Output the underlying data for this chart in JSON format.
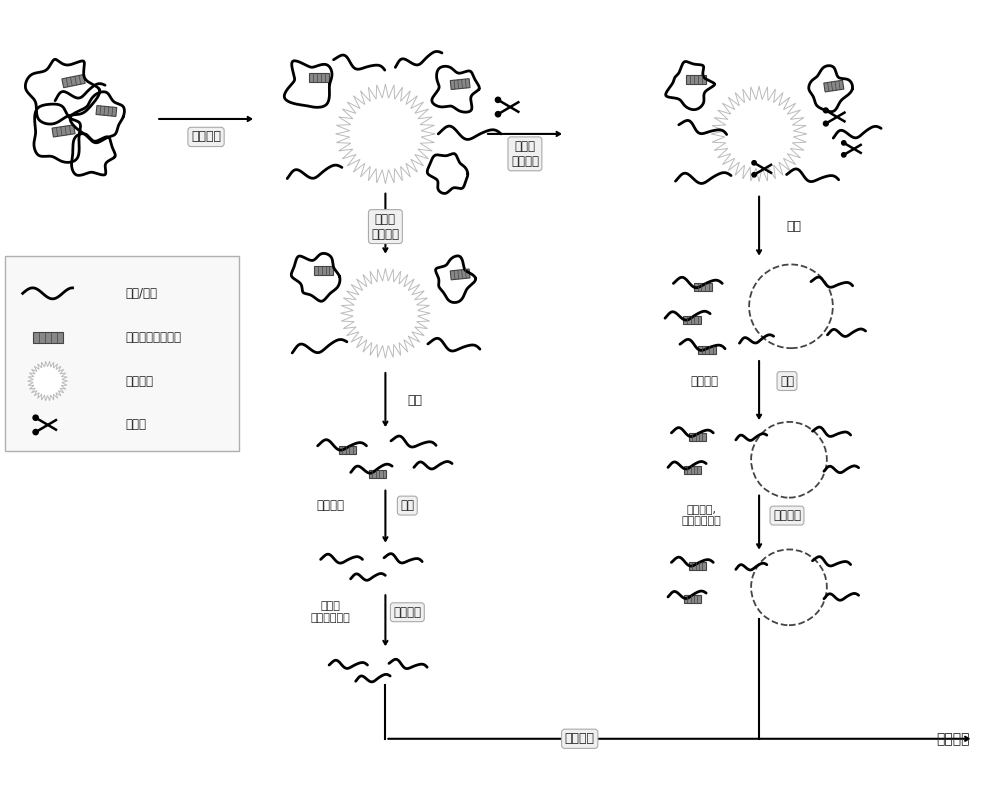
{
  "bg_color": "#ffffff",
  "labels": {
    "protein_loading": "蛋白固载",
    "exp_group": "实验组\n酶切反应",
    "ctrl_group": "对照组\n酶切反应",
    "centrifuge1": "离心",
    "centrifuge2": "离心",
    "trypsin1": "胰蛋白酶",
    "digestion1": "酶解",
    "trypsin2": "胰蛋白酶",
    "digestion2": "酶解",
    "light_label": "轻标标记",
    "heavy_label": "重标标记",
    "light_reagent": "甲醛，\n氰基硼氢化钠",
    "heavy_reagent": "氘代甲醛,\n氰基硼氢化钠",
    "mix_desalt": "混合除盐",
    "ms_analysis": "质谱分析",
    "legend_protein": "蛋白/肽段",
    "legend_motif": "蛋白酶特异性模序",
    "legend_carrier": "固相载体",
    "legend_enzyme": "蛋白酶"
  }
}
